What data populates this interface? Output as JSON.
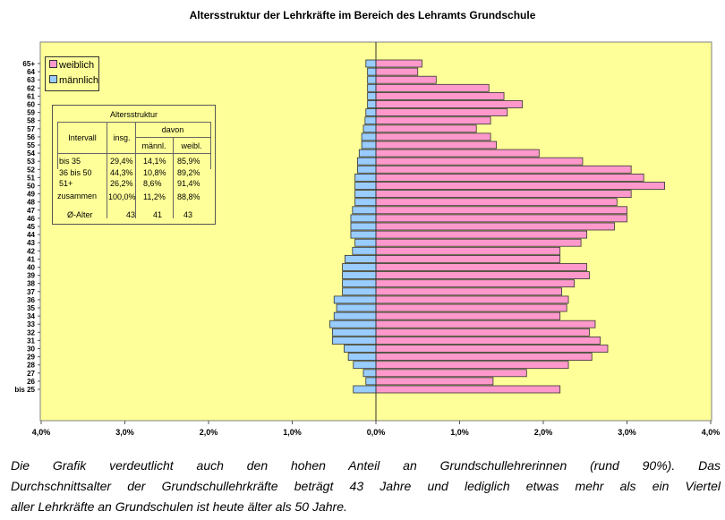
{
  "title": "Altersstruktur der Lehrkräfte im Bereich des Lehramts Grundschule",
  "legend": {
    "female_label": "weiblich",
    "male_label": "männlich",
    "female_color": "#ff99cc",
    "male_color": "#99ccff"
  },
  "background_color": "#ffff99",
  "stats_table": {
    "title": "Altersstruktur",
    "col_interval": "Intervall",
    "col_total": "insg.",
    "col_group": "davon",
    "col_male": "männl.",
    "col_female": "weibl.",
    "rows": [
      {
        "label": "bis 35",
        "total": "29,4%",
        "male": "14,1%",
        "female": "85,9%"
      },
      {
        "label": "36 bis 50",
        "total": "44,3%",
        "male": "10,8%",
        "female": "89,2%"
      },
      {
        "label": "51+",
        "total": "26,2%",
        "male": "8,6%",
        "female": "91,4%"
      },
      {
        "label": "zusammen",
        "total": "100,0%",
        "male": "11,2%",
        "female": "88,8%"
      },
      {
        "label": "Ø-Alter",
        "total": "43",
        "male": "41",
        "female": "43"
      }
    ]
  },
  "chart_data": {
    "type": "bar",
    "orientation": "horizontal",
    "title": "Altersstruktur der Lehrkräfte im Bereich des Lehramts Grundschule",
    "categories": [
      "65+",
      "64",
      "63",
      "62",
      "61",
      "60",
      "59",
      "58",
      "57",
      "56",
      "55",
      "54",
      "53",
      "52",
      "51",
      "50",
      "49",
      "48",
      "47",
      "46",
      "45",
      "44",
      "43",
      "42",
      "41",
      "40",
      "39",
      "38",
      "37",
      "36",
      "35",
      "34",
      "33",
      "32",
      "31",
      "30",
      "29",
      "28",
      "27",
      "26",
      "bis 25"
    ],
    "series": [
      {
        "name": "weiblich",
        "values": [
          0.55,
          0.5,
          0.72,
          1.35,
          1.53,
          1.75,
          1.57,
          1.37,
          1.2,
          1.37,
          1.44,
          1.95,
          2.47,
          3.05,
          3.2,
          3.45,
          3.05,
          2.88,
          3.0,
          3.0,
          2.85,
          2.52,
          2.45,
          2.2,
          2.2,
          2.52,
          2.55,
          2.37,
          2.22,
          2.3,
          2.28,
          2.2,
          2.62,
          2.55,
          2.68,
          2.77,
          2.58,
          2.3,
          1.8,
          1.4,
          2.2
        ]
      },
      {
        "name": "männlich",
        "values": [
          0.12,
          0.1,
          0.1,
          0.1,
          0.1,
          0.1,
          0.12,
          0.13,
          0.15,
          0.17,
          0.17,
          0.2,
          0.22,
          0.22,
          0.25,
          0.25,
          0.25,
          0.25,
          0.28,
          0.3,
          0.3,
          0.3,
          0.25,
          0.28,
          0.37,
          0.4,
          0.4,
          0.4,
          0.4,
          0.5,
          0.47,
          0.5,
          0.55,
          0.52,
          0.52,
          0.38,
          0.33,
          0.27,
          0.15,
          0.12,
          0.27
        ]
      }
    ],
    "x_ticks": [
      "4,0%",
      "3,0%",
      "2,0%",
      "1,0%",
      "0,0%",
      "1,0%",
      "2,0%",
      "3,0%",
      "4,0%"
    ],
    "xlim": [
      -4.0,
      4.0
    ],
    "grid": false,
    "legend": "top-left"
  },
  "caption": {
    "line1": "Die Grafik verdeutlicht auch den hohen Anteil an Grundschullehrerinnen (rund 90%). Das",
    "line2": "Durchschnittsalter der Grundschullehrkräfte beträgt 43 Jahre und lediglich etwas mehr als ein Viertel",
    "line3": "aller Lehrkräfte an Grundschulen ist heute älter als 50 Jahre."
  }
}
